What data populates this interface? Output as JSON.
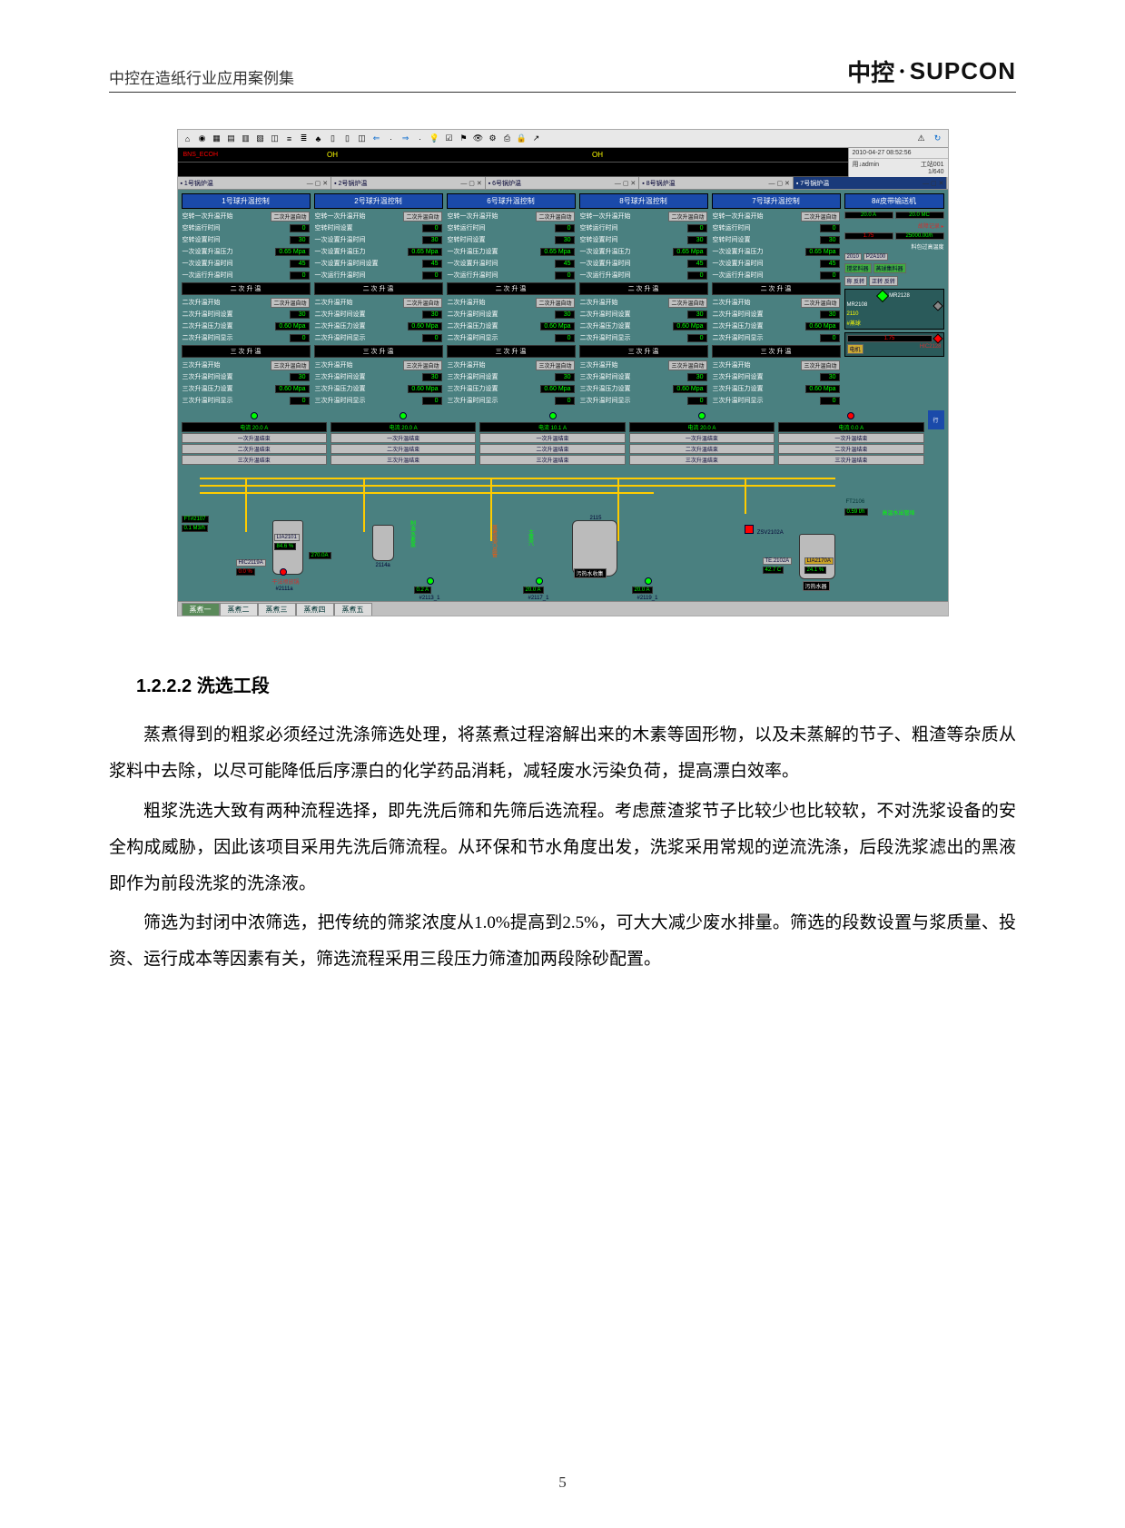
{
  "header": {
    "left": "中控在造纸行业应用案例集",
    "logo_cn": "中控",
    "logo_en": "SUPCON"
  },
  "scada": {
    "clock": "2010-04-27 08:52:56",
    "user_left": "用↓admin",
    "user_right": "工站001\n1/640",
    "strip_alarm": "BNS_ECOH",
    "strip_mid1": "OH",
    "strip_mid2": "OH",
    "window_tabs": [
      {
        "label": "1号锅炉温",
        "active": false
      },
      {
        "label": "2号锅炉温",
        "active": false
      },
      {
        "label": "6号锅炉温",
        "active": false
      },
      {
        "label": "8号锅炉温",
        "active": false
      },
      {
        "label": "7号锅炉温",
        "active": true
      }
    ],
    "panels": [
      {
        "title": "1号球升温控制",
        "rows1": [
          {
            "label": "空转一次升温开始",
            "btn": "二次升温自动"
          },
          {
            "label": "空转运行时间",
            "val": "0"
          },
          {
            "label": "空转设置时间",
            "val": "30"
          },
          {
            "label": "一次设置升温压力",
            "val": "0.65 Mpa"
          },
          {
            "label": "一次设置升温时间",
            "val": "45"
          },
          {
            "label": "一次运行升温时间",
            "val": "0"
          }
        ],
        "band2": "二 次 升 温",
        "rows2": [
          {
            "label": "二次升温开始",
            "btn": "二次升温自动"
          },
          {
            "label": "二次升温时间设置",
            "val": "30"
          },
          {
            "label": "二次升温压力设置",
            "val": "0.60 Mpa"
          },
          {
            "label": "二次升温时间显示",
            "val": "0"
          }
        ],
        "band3": "三 次 升 温",
        "rows3": [
          {
            "label": "三次升温开始",
            "btn": "三次升温自动"
          },
          {
            "label": "三次升温时间设置",
            "val": "30"
          },
          {
            "label": "三次升温压力设置",
            "val": "0.60 Mpa"
          },
          {
            "label": "三次升温时间显示",
            "val": "0"
          }
        ]
      },
      {
        "title": "2号球升温控制",
        "rows1": [
          {
            "label": "空转一次升温开始",
            "btn": "二次升温自动"
          },
          {
            "label": "空转时间设置",
            "val": "0"
          },
          {
            "label": "一次设置升温时间",
            "val": "30"
          },
          {
            "label": "一次设置升温压力",
            "val": "0.65 Mpa"
          },
          {
            "label": "一次设置升温时间设置",
            "val": "45"
          },
          {
            "label": "一次运行升温时间",
            "val": "0"
          }
        ],
        "band2": "二 次 升 温",
        "rows2": [
          {
            "label": "二次升温开始",
            "btn": "二次升温自动"
          },
          {
            "label": "二次升温时间设置",
            "val": "30"
          },
          {
            "label": "二次升温压力设置",
            "val": "0.60 Mpa"
          },
          {
            "label": "二次升温时间显示",
            "val": "0"
          }
        ],
        "band3": "三 次 升 温",
        "rows3": [
          {
            "label": "三次升温开始",
            "btn": "三次升温自动"
          },
          {
            "label": "三次升温时间设置",
            "val": "30"
          },
          {
            "label": "三次升温压力设置",
            "val": "0.60 Mpa"
          },
          {
            "label": "三次升温时间显示",
            "val": "0"
          }
        ]
      },
      {
        "title": "6号球升温控制",
        "rows1": [
          {
            "label": "空转一次升温开始",
            "btn": "二次升温自动"
          },
          {
            "label": "空转运行时间",
            "val": "0"
          },
          {
            "label": "空转时间设置",
            "val": "30"
          },
          {
            "label": "一次升温压力设置",
            "val": "0.65 Mpa"
          },
          {
            "label": "一次设置升温时间",
            "val": "45"
          },
          {
            "label": "一次运行升温时间",
            "val": "0"
          }
        ],
        "band2": "二 次 升 温",
        "rows2": [
          {
            "label": "二次升温开始",
            "btn": "二次升温自动"
          },
          {
            "label": "二次升温时间设置",
            "val": "30"
          },
          {
            "label": "二次升温压力设置",
            "val": "0.60 Mpa"
          },
          {
            "label": "二次升温时间显示",
            "val": "0"
          }
        ],
        "band3": "三 次 升 温",
        "rows3": [
          {
            "label": "三次升温开始",
            "btn": "三次升温自动"
          },
          {
            "label": "三次升温时间设置",
            "val": "30"
          },
          {
            "label": "三次升温压力设置",
            "val": "0.60 Mpa"
          },
          {
            "label": "三次升温时间显示",
            "val": "0"
          }
        ]
      },
      {
        "title": "8号球升温控制",
        "rows1": [
          {
            "label": "空转一次升温开始",
            "btn": "二次升温自动"
          },
          {
            "label": "空转运行时间",
            "val": "0"
          },
          {
            "label": "空转设置时间",
            "val": "30"
          },
          {
            "label": "一次设置升温压力",
            "val": "0.65 Mpa"
          },
          {
            "label": "一次设置升温时间",
            "val": "45"
          },
          {
            "label": "一次运行升温时间",
            "val": "0"
          }
        ],
        "band2": "二 次 升 温",
        "rows2": [
          {
            "label": "二次升温开始",
            "btn": "二次升温自动"
          },
          {
            "label": "二次升温时间设置",
            "val": "30"
          },
          {
            "label": "二次升温压力设置",
            "val": "0.60 Mpa"
          },
          {
            "label": "二次升温时间显示",
            "val": "0"
          }
        ],
        "band3": "三 次 升 温",
        "rows3": [
          {
            "label": "三次升温开始",
            "btn": "三次升温自动"
          },
          {
            "label": "三次升温时间设置",
            "val": "30"
          },
          {
            "label": "三次升温压力设置",
            "val": "0.60 Mpa"
          },
          {
            "label": "三次升温时间显示",
            "val": "0"
          }
        ]
      },
      {
        "title": "7号球升温控制",
        "rows1": [
          {
            "label": "空转一次升温开始",
            "btn": "二次升温自动"
          },
          {
            "label": "空转运行时间",
            "val": "0"
          },
          {
            "label": "空转时间设置",
            "val": "30"
          },
          {
            "label": "一次设置升温压力",
            "val": "0.65 Mpa"
          },
          {
            "label": "一次设置升温时间",
            "val": "45"
          },
          {
            "label": "一次运行升温时间",
            "val": "0"
          }
        ],
        "band2": "二 次 升 温",
        "rows2": [
          {
            "label": "二次升温开始",
            "btn": "二次升温自动"
          },
          {
            "label": "二次升温时间设置",
            "val": "30"
          },
          {
            "label": "二次升温压力设置",
            "val": "0.60 Mpa"
          },
          {
            "label": "二次升温时间显示",
            "val": "0"
          }
        ],
        "band3": "三 次 升 温",
        "rows3": [
          {
            "label": "三次升温开始",
            "btn": "三次升温自动"
          },
          {
            "label": "三次升温时间设置",
            "val": "30"
          },
          {
            "label": "三次升温压力设置",
            "val": "0.60 Mpa"
          },
          {
            "label": "三次升温时间显示",
            "val": "0"
          }
        ]
      }
    ],
    "side": {
      "title": "8#皮带输送机",
      "ro1": [
        "20.0 A",
        "20.0 MC"
      ],
      "link": "故障记录",
      "ro2": [
        "1.75",
        "25000.00/h"
      ],
      "ro2_label": "料包过高温度",
      "tags": [
        "2010",
        "P2A100"
      ],
      "btn_groups": [
        [
          "搅浆料器",
          "蒸球集料器"
        ],
        [
          "称 反转",
          "正转 反转"
        ]
      ],
      "valve1": "MR2128",
      "valve2": "MR2108",
      "readouts": [
        "2110",
        "#蒸球"
      ],
      "ro3": "1.75",
      "electric": "电机",
      "electric_tag": "HIC2128"
    },
    "meters": [
      {
        "label": "电流 20.0 A",
        "status": [
          "一次升温结束",
          "二次升温结束",
          "三次升温结束"
        ]
      },
      {
        "label": "电流 20.0 A",
        "status": [
          "一次升温结束",
          "二次升温结束",
          "三次升温结束"
        ]
      },
      {
        "label": "电流 10.1 A",
        "status": [
          "一次升温结束",
          "二次升温结束",
          "三次升温结束"
        ]
      },
      {
        "label": "电流 20.0 A",
        "status": [
          "一次升温结束",
          "二次升温结束",
          "三次升温结束"
        ]
      },
      {
        "label": "电流 0.0 A",
        "status": [
          "一次升温结束",
          "二次升温结束",
          "三次升温结束"
        ]
      }
    ],
    "process": {
      "tag_ft": "FT#2107",
      "tag_ft_val": "0.1 M3/h",
      "tank1": "LIA2101",
      "tank1_val": "84.6 %",
      "tag_hic": "HIC2119A",
      "tag_hic_val": "0.0 %",
      "pump1": "#2111a",
      "pump1_label": "干法喷放锅",
      "pump1_val": "270.0A",
      "vessel2": "2114a",
      "vtxt1": "制造水素蒸",
      "vtxt2": "蒸煮蒸汽总管",
      "vtxt3": "主蒸汽",
      "vessel3": "2115",
      "vessel3_label": "污热水收集",
      "below": [
        {
          "tag": "#2113_1",
          "val": "0.2 A"
        },
        {
          "tag": "#2117_1",
          "val": "20.0 A"
        },
        {
          "tag": "#2119_1",
          "val": "20.0 A"
        }
      ],
      "right_valve": "ZSV2102A",
      "right_tags": {
        "a": "TE.2102A",
        "b": "LIA2170A",
        "av": "42.7 C",
        "bv": "24.1 %"
      },
      "right_label": "污热水器",
      "ft_right": "FT2106",
      "ft_right_val": "0.59 t/h",
      "ft_right_txt": "高温水出管埠"
    },
    "bottom_tabs": [
      "蒸煮一",
      "蒸煮二",
      "蒸煮三",
      "蒸煮四",
      "蒸煮五"
    ],
    "bottom_active": 0,
    "colors": {
      "bg": "#4a8080",
      "panel_title": "#1a4aaa",
      "readout_bg": "#000000",
      "readout_fg": "#00ff00",
      "pipe": "#ffcc00",
      "toolbar": "#e8e8e8",
      "btn": "#c0c0c0"
    }
  },
  "doc": {
    "section_no": "1.2.2.2",
    "section_title": "洗选工段",
    "paras": [
      "蒸煮得到的粗浆必须经过洗涤筛选处理，将蒸煮过程溶解出来的木素等固形物，以及未蒸解的节子、粗渣等杂质从浆料中去除，以尽可能降低后序漂白的化学药品消耗，减轻废水污染负荷，提高漂白效率。",
      "粗浆洗选大致有两种流程选择，即先洗后筛和先筛后选流程。考虑蔗渣浆节子比较少也比较软，不对洗浆设备的安全构成威胁，因此该项目采用先洗后筛流程。从环保和节水角度出发，洗浆采用常规的逆流洗涤，后段洗浆滤出的黑液即作为前段洗浆的洗涤液。",
      "筛选为封闭中浓筛选，把传统的筛浆浓度从1.0%提高到2.5%，可大大减少废水排量。筛选的段数设置与浆质量、投资、运行成本等因素有关，筛选流程采用三段压力筛渣加两段除砂配置。"
    ]
  },
  "page_num": "5"
}
